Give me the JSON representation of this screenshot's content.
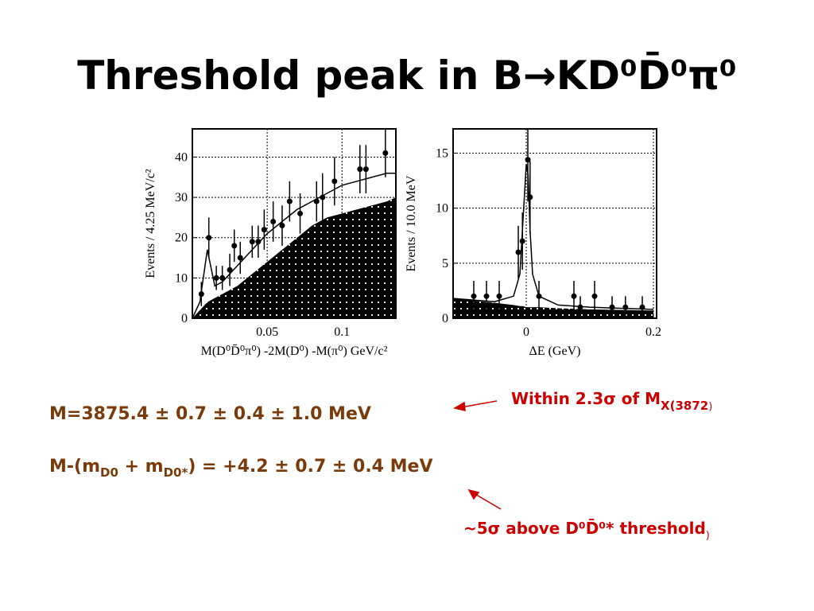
{
  "title": "Threshold peak in B→KD⁰D̄⁰π⁰",
  "results": [
    {
      "parts": [
        "M=3875.4 ±  0.7 ± 0.4 ± 1.0 MeV"
      ]
    },
    {
      "parts": [
        "M-(m",
        "D0",
        " + m",
        "D0*",
        ") = +4.2 ± 0.7 ± 0.4 MeV"
      ]
    }
  ],
  "annotations": [
    {
      "parts": [
        "Within 2.3σ of M",
        "X(3872",
        ")"
      ]
    },
    {
      "parts": [
        "~5σ above D⁰D̄⁰* threshold",
        ")"
      ]
    }
  ],
  "chart_data": [
    {
      "type": "scatter",
      "x_label": "M(D⁰D̄⁰π⁰) -2M(D⁰) -M(π⁰) GeV/c²",
      "y_label": "Events / 4.25 MeV/c²",
      "xlim": [
        0,
        0.136
      ],
      "ylim": [
        0,
        47
      ],
      "xticks": [
        0.05,
        0.1
      ],
      "yticks": [
        0,
        10,
        20,
        30,
        40
      ],
      "grid": true,
      "color": "#000000",
      "points": {
        "x": [
          0.006,
          0.011,
          0.016,
          0.02,
          0.025,
          0.028,
          0.032,
          0.04,
          0.044,
          0.048,
          0.054,
          0.06,
          0.065,
          0.072,
          0.083,
          0.087,
          0.095,
          0.112,
          0.116,
          0.129
        ],
        "values": [
          6,
          20,
          10,
          10,
          12,
          18,
          15,
          19,
          19,
          22,
          24,
          23,
          29,
          26,
          29,
          30,
          34,
          37,
          37,
          41
        ],
        "errors": [
          3,
          5,
          3,
          3,
          4,
          4,
          4,
          4,
          4,
          5,
          5,
          5,
          5,
          5,
          5,
          6,
          6,
          6,
          6,
          6
        ]
      },
      "fit": {
        "x": [
          0,
          0.005,
          0.01,
          0.015,
          0.02,
          0.03,
          0.04,
          0.05,
          0.06,
          0.07,
          0.08,
          0.09,
          0.1,
          0.11,
          0.12,
          0.13,
          0.136
        ],
        "values": [
          0,
          4,
          17,
          8,
          9,
          13,
          17,
          21,
          24,
          27,
          29,
          31,
          33,
          34,
          35,
          36,
          36
        ]
      },
      "background": {
        "x": [
          0,
          0.005,
          0.01,
          0.015,
          0.02,
          0.03,
          0.04,
          0.05,
          0.06,
          0.07,
          0.08,
          0.09,
          0.1,
          0.11,
          0.12,
          0.13,
          0.136
        ],
        "values": [
          0,
          2,
          4,
          5,
          6,
          8,
          11,
          14,
          17,
          20,
          23,
          25,
          26,
          27,
          28,
          29,
          30
        ]
      }
    },
    {
      "type": "scatter",
      "x_label": "ΔE (GeV)",
      "y_label": "Events / 10.0 MeV",
      "xlim": [
        -0.115,
        0.205
      ],
      "ylim": [
        0,
        17.2
      ],
      "xticks": [
        0,
        0.2
      ],
      "yticks": [
        0,
        5,
        10,
        15
      ],
      "grid": true,
      "color": "#000000",
      "points": {
        "x": [
          -0.0825,
          -0.0625,
          -0.0425,
          -0.0125,
          -0.006,
          0.0025,
          0.006,
          0.02,
          0.075,
          0.085,
          0.1075,
          0.135,
          0.156,
          0.1825
        ],
        "values": [
          2,
          2,
          2,
          6,
          7,
          14.4,
          11,
          2,
          2,
          1,
          2,
          1,
          1,
          1
        ],
        "errors": [
          1.4,
          1.4,
          1.4,
          2.4,
          2.6,
          3.8,
          3.3,
          1.4,
          1.4,
          1,
          1.4,
          1,
          1,
          1
        ]
      },
      "fit": {
        "x": [
          -0.115,
          -0.05,
          -0.02,
          -0.01,
          -0.005,
          0,
          0.003,
          0.006,
          0.01,
          0.02,
          0.05,
          0.1,
          0.2
        ],
        "values": [
          1.8,
          1.5,
          2,
          4,
          9,
          14,
          13,
          8,
          4,
          2,
          1.2,
          1,
          0.8
        ]
      },
      "background": {
        "x": [
          -0.115,
          -0.05,
          -0.02,
          -0.01,
          -0.005,
          0,
          0.003,
          0.006,
          0.01,
          0.02,
          0.05,
          0.1,
          0.2
        ],
        "values": [
          1.8,
          1.4,
          1.2,
          1.1,
          1.1,
          1,
          1,
          1,
          1,
          1,
          0.9,
          0.8,
          0.7
        ]
      }
    }
  ]
}
